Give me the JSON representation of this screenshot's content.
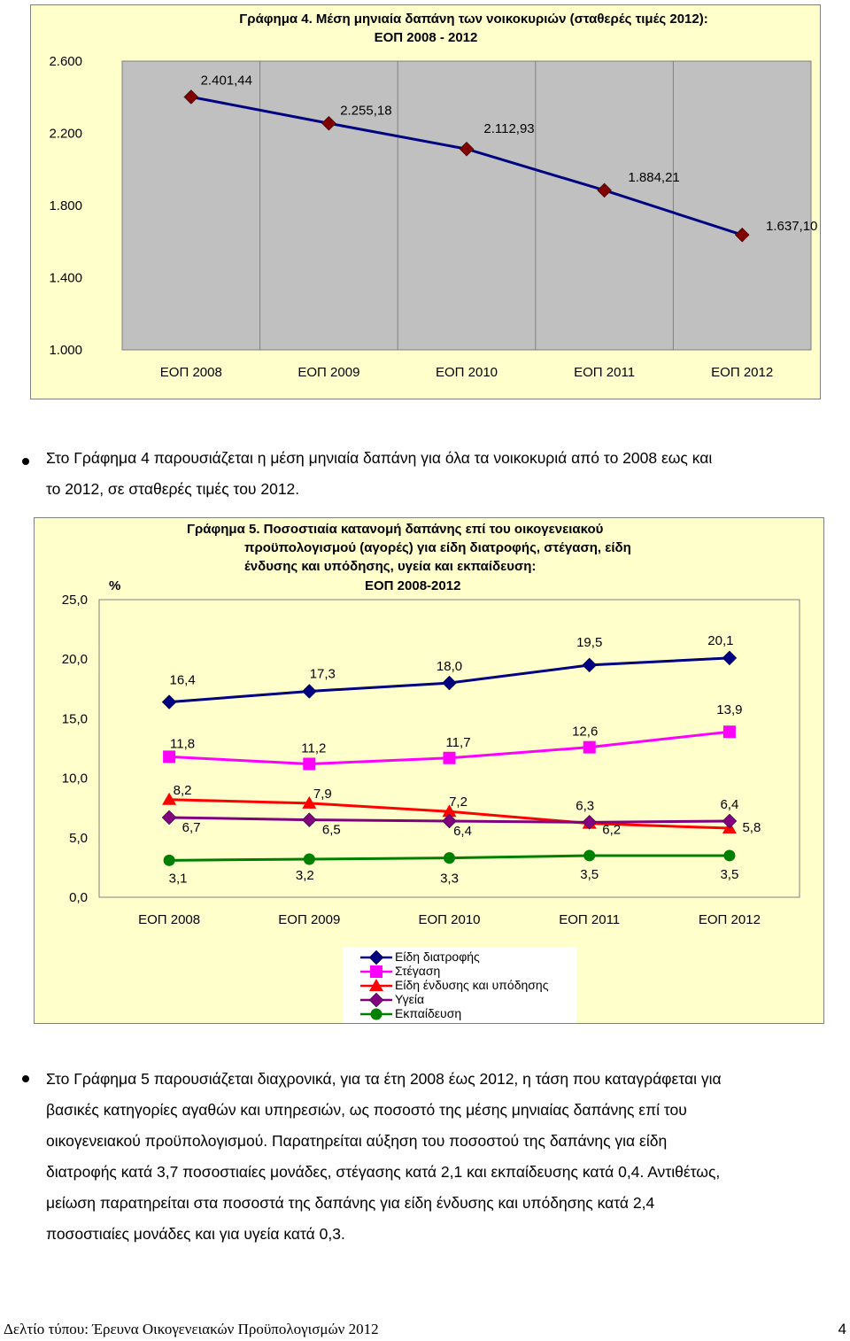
{
  "chart_data": [
    {
      "type": "line",
      "title": "Γράφημα 4. Μέση μηνιαία δαπάνη των νοικοκυριών (σταθερές τιμές 2012):",
      "subtitle": "ΕΟΠ 2008 - 2012",
      "categories": [
        "ΕΟΠ 2008",
        "ΕΟΠ 2009",
        "ΕΟΠ 2010",
        "ΕΟΠ 2011",
        "ΕΟΠ 2012"
      ],
      "ylim": [
        1000,
        2600
      ],
      "yticks": [
        "2.600",
        "2.200",
        "1.800",
        "1.400",
        "1.000"
      ],
      "ytick_values": [
        2600,
        2200,
        1800,
        1400,
        1000
      ],
      "series": [
        {
          "values": [
            2401.44,
            2255.18,
            2112.93,
            1884.21,
            1637.1
          ],
          "labels": [
            "2.401,44",
            "2.255,18",
            "2.112,93",
            "1.884,21",
            "1.637,10"
          ],
          "color": "#000080",
          "marker": "diamond",
          "marker_color": "#800000"
        }
      ],
      "grid": "vertical",
      "background": "#ffffcc"
    },
    {
      "type": "line",
      "title": "Γράφημα 5. Ποσοστιαία κατανομή δαπάνης επί του οικογενειακού",
      "title_line2": "προϋπολογισμού (αγορές) για είδη διατροφής, στέγαση, είδη",
      "title_line3": "ένδυσης και υπόδησης, υγεία και εκπαίδευση:",
      "title_line4": "ΕΟΠ 2008-2012",
      "ylabel": "%",
      "categories": [
        "ΕΟΠ 2008",
        "ΕΟΠ 2009",
        "ΕΟΠ 2010",
        "ΕΟΠ 2011",
        "ΕΟΠ 2012"
      ],
      "ylim": [
        0,
        25
      ],
      "yticks": [
        "25,0",
        "20,0",
        "15,0",
        "10,0",
        "5,0",
        "0,0"
      ],
      "ytick_values": [
        25,
        20,
        15,
        10,
        5,
        0
      ],
      "series": [
        {
          "name": "Είδη διατροφής",
          "values": [
            16.4,
            17.3,
            18.0,
            19.5,
            20.1
          ],
          "labels": [
            "16,4",
            "17,3",
            "18,0",
            "19,5",
            "20,1"
          ],
          "color": "#000080",
          "marker": "diamond"
        },
        {
          "name": "Στέγαση",
          "values": [
            11.8,
            11.2,
            11.7,
            12.6,
            13.9
          ],
          "labels": [
            "11,8",
            "11,2",
            "11,7",
            "12,6",
            "13,9"
          ],
          "color": "#ff00ff",
          "marker": "square"
        },
        {
          "name": "Είδη ένδυσης και υπόδησης",
          "values": [
            8.2,
            7.9,
            7.2,
            6.2,
            5.8
          ],
          "labels": [
            "8,2",
            "7,9",
            "7,2",
            "6,2",
            "5,8"
          ],
          "color": "#ff0000",
          "marker": "triangle"
        },
        {
          "name": "Υγεία",
          "values": [
            6.7,
            6.5,
            6.4,
            6.3,
            6.4
          ],
          "labels": [
            "6,7",
            "6,5",
            "6,4",
            "6,3",
            "6,4"
          ],
          "color": "#800080",
          "marker": "diamond"
        },
        {
          "name": "Εκπαίδευση",
          "values": [
            3.1,
            3.2,
            3.3,
            3.5,
            3.5
          ],
          "labels": [
            "3,1",
            "3,2",
            "3,3",
            "3,5",
            "3,5"
          ],
          "color": "#008000",
          "marker": "circle"
        }
      ],
      "legend": "bottom-center",
      "background": "#ffffcc"
    }
  ],
  "paragraph1": {
    "line1": "Στο Γράφημα 4 παρουσιάζεται η  μέση μηνιαία δαπάνη για όλα τα νοικοκυριά από το 2008 εως και",
    "line2": "το 2012, σε σταθερές τιμές του 2012."
  },
  "paragraph2": {
    "line1": "Στο Γράφημα 5 παρουσιάζεται διαχρονικά, για τα έτη 2008 έως 2012, η τάση που καταγράφεται για",
    "line2": "βασικές κατηγορίες αγαθών και υπηρεσιών, ως ποσοστό της μέσης μηνιαίας δαπάνης επί του",
    "line3": "οικογενειακού προϋπολογισμού. Παρατηρείται αύξηση του ποσοστού της δαπάνης για είδη",
    "line4": "διατροφής κατά 3,7 ποσοστιαίες μονάδες, στέγασης κατά 2,1 και εκπαίδευσης κατά 0,4. Αντιθέτως,",
    "line5": "μείωση παρατηρείται στα ποσοστά της δαπάνης για είδη ένδυσης και υπόδησης κατά 2,4",
    "line6": "ποσοστιαίες μονάδες και  για υγεία κατά 0,3."
  },
  "footer": {
    "text": "Δελτίο τύπου: Έρευνα Οικογενειακών Προϋπολογισμών 2012",
    "page": "4"
  }
}
